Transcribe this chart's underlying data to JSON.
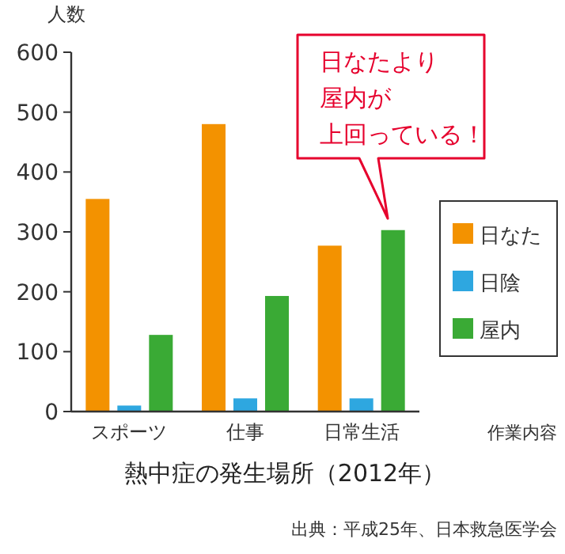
{
  "chart_data": {
    "type": "bar",
    "title": "熱中症の発生場所（2012年）",
    "ylabel": "人数",
    "xlabel": "作業内容",
    "categories": [
      "スポーツ",
      "仕事",
      "日常生活"
    ],
    "series": [
      {
        "name": "日なた",
        "color": "#f39200",
        "values": [
          355,
          480,
          277
        ]
      },
      {
        "name": "日陰",
        "color": "#2ea7e0",
        "values": [
          10,
          22,
          22
        ]
      },
      {
        "name": "屋内",
        "color": "#3aaa35",
        "values": [
          128,
          193,
          303
        ]
      }
    ],
    "ylim": [
      0,
      600
    ],
    "yticks": [
      0,
      100,
      200,
      300,
      400,
      500,
      600
    ],
    "legend": "right",
    "annotations": [
      "日なたより",
      "屋内が",
      "上回っている！",
      "出典：平成25年、日本救急医学会"
    ]
  }
}
